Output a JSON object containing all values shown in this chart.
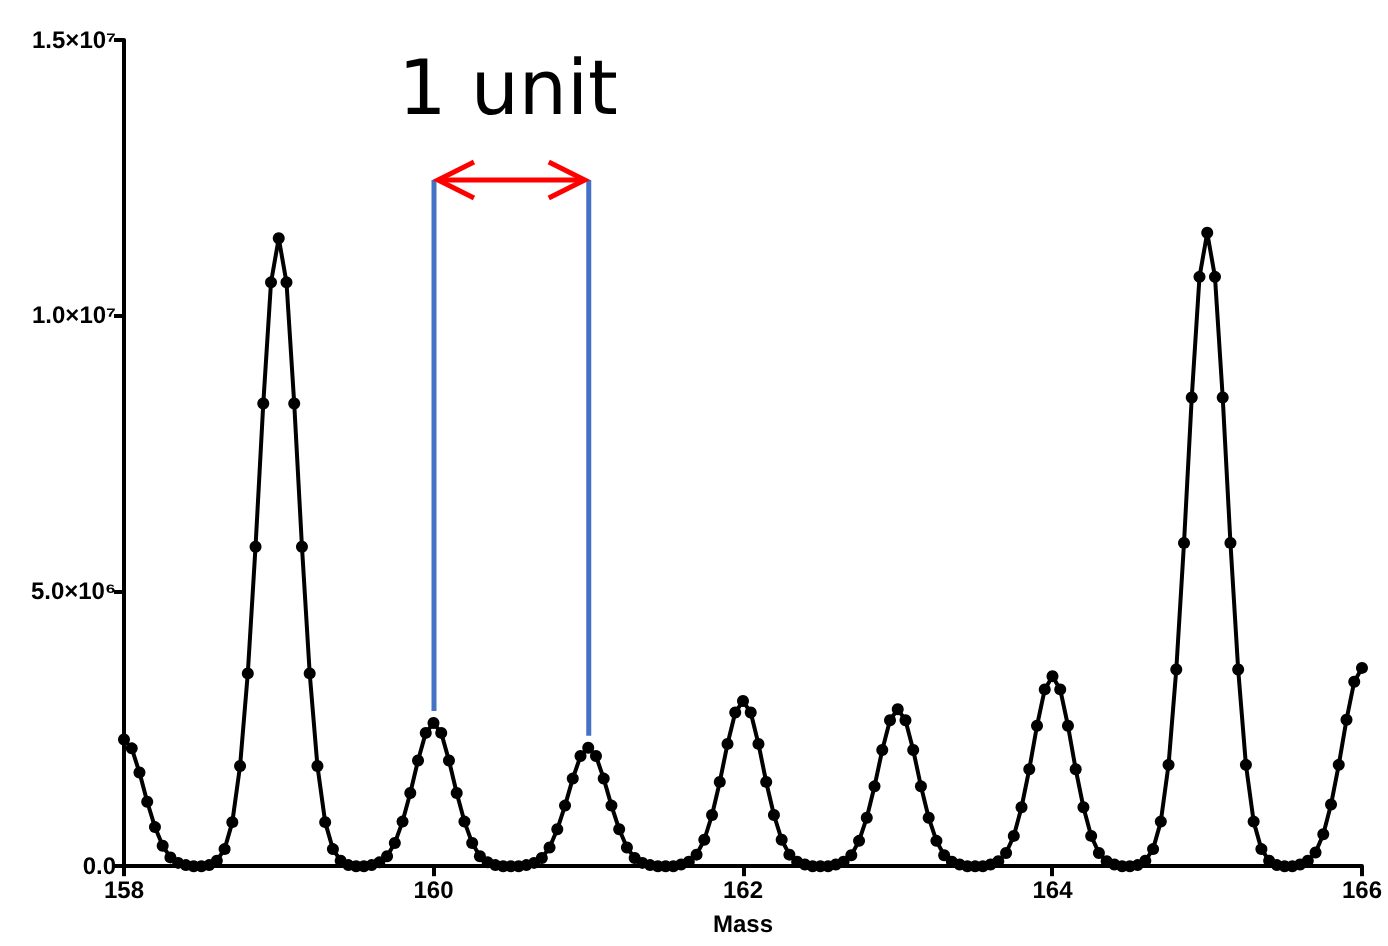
{
  "chart_data": {
    "type": "line",
    "xlabel": "Mass",
    "marker": "circle",
    "grid": false,
    "xlim": [
      158,
      166
    ],
    "xticks": [
      158,
      160,
      162,
      164,
      166
    ],
    "ylim": [
      0,
      15000000
    ],
    "yticks": [
      {
        "value": 0,
        "label": "0.0"
      },
      {
        "value": 5000000,
        "label": "5.0×10⁶"
      },
      {
        "value": 10000000,
        "label": "1.0×10⁷"
      },
      {
        "value": 15000000,
        "label": "1.5×10⁷"
      }
    ],
    "annotations": [
      "1 unit"
    ],
    "x": [
      158,
      158.05,
      158.1,
      158.15,
      158.2,
      158.25,
      158.3,
      158.35,
      158.4,
      158.45,
      158.5,
      158.55,
      158.6,
      158.65,
      158.7,
      158.75,
      158.8,
      158.85,
      158.9,
      158.95,
      159,
      159.05,
      159.1,
      159.15,
      159.2,
      159.25,
      159.3,
      159.35,
      159.4,
      159.45,
      159.5,
      159.55,
      159.6,
      159.65,
      159.7,
      159.75,
      159.8,
      159.85,
      159.9,
      159.95,
      160,
      160.05,
      160.1,
      160.15,
      160.2,
      160.25,
      160.3,
      160.35,
      160.4,
      160.45,
      160.5,
      160.55,
      160.6,
      160.65,
      160.7,
      160.75,
      160.8,
      160.85,
      160.9,
      160.95,
      161,
      161.05,
      161.1,
      161.15,
      161.2,
      161.25,
      161.3,
      161.35,
      161.4,
      161.45,
      161.5,
      161.55,
      161.6,
      161.65,
      161.7,
      161.75,
      161.8,
      161.85,
      161.9,
      161.95,
      162,
      162.05,
      162.1,
      162.15,
      162.2,
      162.25,
      162.3,
      162.35,
      162.4,
      162.45,
      162.5,
      162.55,
      162.6,
      162.65,
      162.7,
      162.75,
      162.8,
      162.85,
      162.9,
      162.95,
      163,
      163.05,
      163.1,
      163.15,
      163.2,
      163.25,
      163.3,
      163.35,
      163.4,
      163.45,
      163.5,
      163.55,
      163.6,
      163.65,
      163.7,
      163.75,
      163.8,
      163.85,
      163.9,
      163.95,
      164,
      164.05,
      164.1,
      164.15,
      164.2,
      164.25,
      164.3,
      164.35,
      164.4,
      164.45,
      164.5,
      164.55,
      164.6,
      164.65,
      164.7,
      164.75,
      164.8,
      164.85,
      164.9,
      164.95,
      165,
      165.05,
      165.1,
      165.15,
      165.2,
      165.25,
      165.3,
      165.35,
      165.4,
      165.45,
      165.5,
      165.55,
      165.6,
      165.65,
      165.7,
      165.75,
      165.8,
      165.85,
      165.9,
      165.95,
      166
    ],
    "series": [
      {
        "color": "#000000",
        "values": [
          2300000,
          2140000,
          1700000,
          1170000,
          710000,
          370000,
          160000,
          60000,
          20000,
          0,
          0,
          20000,
          100000,
          310000,
          800000,
          1820000,
          3500000,
          5800000,
          8400000,
          10600000,
          11400000,
          10600000,
          8400000,
          5800000,
          3500000,
          1820000,
          800000,
          310000,
          100000,
          20000,
          0,
          0,
          20000,
          70000,
          180000,
          420000,
          810000,
          1330000,
          1920000,
          2420000,
          2600000,
          2420000,
          1920000,
          1330000,
          810000,
          420000,
          180000,
          70000,
          20000,
          0,
          0,
          0,
          20000,
          60000,
          150000,
          340000,
          670000,
          1100000,
          1590000,
          2000000,
          2150000,
          2000000,
          1590000,
          1100000,
          670000,
          340000,
          150000,
          60000,
          20000,
          0,
          0,
          0,
          30000,
          80000,
          210000,
          480000,
          930000,
          1530000,
          2220000,
          2790000,
          3000000,
          2790000,
          2220000,
          1530000,
          930000,
          480000,
          210000,
          80000,
          30000,
          0,
          0,
          0,
          30000,
          80000,
          200000,
          460000,
          880000,
          1450000,
          2110000,
          2650000,
          2850000,
          2650000,
          2110000,
          1450000,
          880000,
          460000,
          200000,
          80000,
          30000,
          0,
          0,
          0,
          30000,
          90000,
          240000,
          550000,
          1070000,
          1760000,
          2550000,
          3210000,
          3450000,
          3210000,
          2550000,
          1760000,
          1070000,
          550000,
          240000,
          90000,
          30000,
          0,
          0,
          20000,
          100000,
          310000,
          810000,
          1840000,
          3570000,
          5870000,
          8510000,
          10700000,
          11500000,
          10700000,
          8510000,
          5870000,
          3570000,
          1840000,
          810000,
          310000,
          100000,
          20000,
          0,
          0,
          30000,
          100000,
          250000,
          580000,
          1120000,
          1840000,
          2660000,
          3350000,
          3600000
        ]
      }
    ]
  }
}
